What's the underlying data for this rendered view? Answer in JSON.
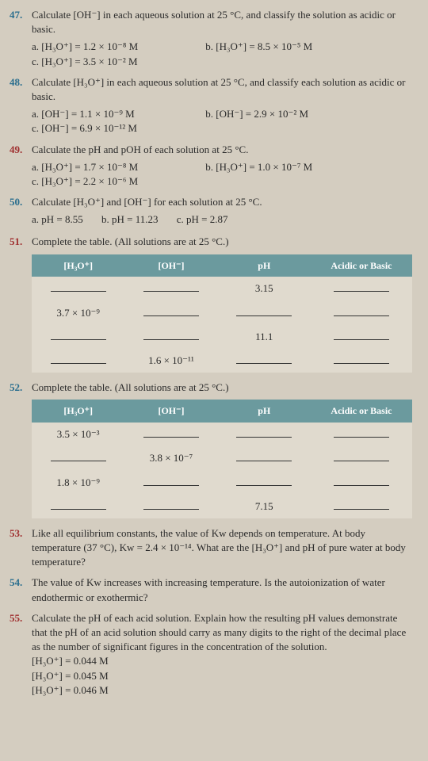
{
  "p47": {
    "num": "47.",
    "text": "Calculate [OH⁻] in each aqueous solution at 25 °C, and classify the solution as acidic or basic.",
    "a": "a. [H₃O⁺] = 1.2 × 10⁻⁸ M",
    "b": "b. [H₃O⁺] = 8.5 × 10⁻⁵ M",
    "c": "c. [H₃O⁺] = 3.5 × 10⁻² M"
  },
  "p48": {
    "num": "48.",
    "text": "Calculate [H₃O⁺] in each aqueous solution at 25 °C, and classify each solution as acidic or basic.",
    "a": "a. [OH⁻] = 1.1 × 10⁻⁹ M",
    "b": "b. [OH⁻] = 2.9 × 10⁻² M",
    "c": "c. [OH⁻] = 6.9 × 10⁻¹² M"
  },
  "p49": {
    "num": "49.",
    "text": "Calculate the pH and pOH of each solution at 25 °C.",
    "a": "a. [H₃O⁺] = 1.7 × 10⁻⁸ M",
    "b": "b. [H₃O⁺] = 1.0 × 10⁻⁷ M",
    "c": "c. [H₃O⁺] = 2.2 × 10⁻⁶ M"
  },
  "p50": {
    "num": "50.",
    "text": "Calculate [H₃O⁺] and [OH⁻] for each solution at 25 °C.",
    "a": "a. pH = 8.55",
    "b": "b. pH = 11.23",
    "c": "c. pH = 2.87"
  },
  "p51": {
    "num": "51.",
    "text": "Complete the table. (All solutions are at 25 °C.)",
    "headers": [
      "[H₃O⁺]",
      "[OH⁻]",
      "pH",
      "Acidic or Basic"
    ],
    "rows": [
      [
        "",
        "",
        "3.15",
        ""
      ],
      [
        "3.7 × 10⁻⁹",
        "",
        "",
        ""
      ],
      [
        "",
        "",
        "11.1",
        ""
      ],
      [
        "",
        "1.6 × 10⁻¹¹",
        "",
        ""
      ]
    ]
  },
  "p52": {
    "num": "52.",
    "text": "Complete the table. (All solutions are at 25 °C.)",
    "headers": [
      "[H₃O⁺]",
      "[OH⁻]",
      "pH",
      "Acidic or Basic"
    ],
    "rows": [
      [
        "3.5 × 10⁻³",
        "",
        "",
        ""
      ],
      [
        "",
        "3.8 × 10⁻⁷",
        "",
        ""
      ],
      [
        "1.8 × 10⁻⁹",
        "",
        "",
        ""
      ],
      [
        "",
        "",
        "7.15",
        ""
      ]
    ]
  },
  "p53": {
    "num": "53.",
    "text": "Like all equilibrium constants, the value of Kw depends on temperature. At body temperature (37 °C), Kw = 2.4 × 10⁻¹⁴. What are the [H₃O⁺] and pH of pure water at body temperature?"
  },
  "p54": {
    "num": "54.",
    "text": "The value of Kw increases with increasing temperature. Is the autoionization of water endothermic or exothermic?"
  },
  "p55": {
    "num": "55.",
    "text": "Calculate the pH of each acid solution. Explain how the resulting pH values demonstrate that the pH of an acid solution should carry as many digits to the right of the decimal place as the number of significant figures in the concentration of the solution.",
    "l1": "[H₃O⁺] = 0.044 M",
    "l2": "[H₃O⁺] = 0.045 M",
    "l3": "[H₃O⁺] = 0.046 M"
  }
}
